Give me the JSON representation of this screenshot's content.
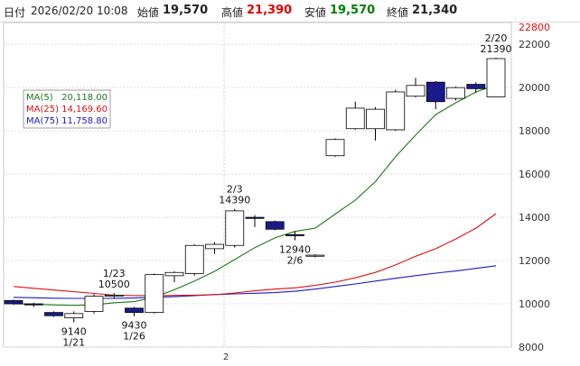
{
  "header": {
    "date_label": "日付",
    "date_value": "2026/02/20 10:08",
    "open_label": "始値",
    "open_value": "19,570",
    "high_label": "高値",
    "high_value": "21,390",
    "low_label": "安値",
    "low_value": "19,570",
    "close_label": "終値",
    "close_value": "21,340",
    "colors": {
      "high": "#e00000",
      "low": "#008000",
      "text": "#222222"
    }
  },
  "legend": {
    "ma5_label": "MA(5)",
    "ma5_value": "20,118.00",
    "ma25_label": "MA(25)",
    "ma25_value": "14,169.60",
    "ma75_label": "MA(75)",
    "ma75_value": "11,758.80"
  },
  "x_tick_label": "2",
  "chart_data": {
    "type": "candlestick",
    "ylim": [
      8000,
      22800
    ],
    "yticks": [
      8000,
      10000,
      12000,
      14000,
      16000,
      18000,
      20000,
      22000
    ],
    "top_label": "22800",
    "candles": [
      {
        "o": 10150,
        "c": 10000,
        "h": 10200,
        "l": 9950
      },
      {
        "o": 10000,
        "c": 9950,
        "h": 10050,
        "l": 9850
      },
      {
        "o": 9600,
        "c": 9450,
        "h": 9650,
        "l": 9400
      },
      {
        "o": 9350,
        "c": 9550,
        "h": 9650,
        "l": 9140
      },
      {
        "o": 9650,
        "c": 10350,
        "h": 10450,
        "l": 9550
      },
      {
        "o": 10350,
        "c": 10400,
        "h": 10500,
        "l": 10250
      },
      {
        "o": 9800,
        "c": 9600,
        "h": 9850,
        "l": 9430
      },
      {
        "o": 9600,
        "c": 11350,
        "h": 11400,
        "l": 9550
      },
      {
        "o": 11300,
        "c": 11450,
        "h": 11500,
        "l": 11000
      },
      {
        "o": 11400,
        "c": 12700,
        "h": 12750,
        "l": 11300
      },
      {
        "o": 12550,
        "c": 12750,
        "h": 12850,
        "l": 12300
      },
      {
        "o": 12700,
        "c": 14300,
        "h": 14390,
        "l": 12600
      },
      {
        "o": 14000,
        "c": 13950,
        "h": 14100,
        "l": 13550
      },
      {
        "o": 13800,
        "c": 13450,
        "h": 13850,
        "l": 13400
      },
      {
        "o": 13200,
        "c": 13150,
        "h": 13350,
        "l": 12940
      },
      {
        "o": 12200,
        "c": 12250,
        "h": 12300,
        "l": 12150
      },
      {
        "o": 16850,
        "c": 17600,
        "h": 17650,
        "l": 16800
      },
      {
        "o": 18100,
        "c": 19050,
        "h": 19350,
        "l": 18050
      },
      {
        "o": 18100,
        "c": 19000,
        "h": 19100,
        "l": 17550
      },
      {
        "o": 18050,
        "c": 19800,
        "h": 19900,
        "l": 18000
      },
      {
        "o": 19600,
        "c": 20100,
        "h": 20450,
        "l": 19550
      },
      {
        "o": 20250,
        "c": 19350,
        "h": 20300,
        "l": 19000
      },
      {
        "o": 19500,
        "c": 20000,
        "h": 20050,
        "l": 19400
      },
      {
        "o": 20150,
        "c": 19950,
        "h": 20250,
        "l": 19750
      },
      {
        "o": 19570,
        "c": 21340,
        "h": 21390,
        "l": 19570
      }
    ],
    "ma5": [
      10000,
      9980,
      9950,
      9930,
      9950,
      10050,
      10100,
      10300,
      10650,
      11050,
      11500,
      12050,
      12600,
      13050,
      13350,
      13500,
      14150,
      14800,
      15650,
      16800,
      17800,
      18750,
      19300,
      19800,
      20118
    ],
    "ma25": [
      10800,
      10720,
      10640,
      10560,
      10480,
      10400,
      10380,
      10380,
      10390,
      10400,
      10420,
      10500,
      10600,
      10680,
      10740,
      10850,
      11000,
      11200,
      11450,
      11800,
      12200,
      12550,
      13000,
      13500,
      14169.6
    ],
    "ma75": [
      10300,
      10280,
      10260,
      10250,
      10250,
      10250,
      10270,
      10300,
      10330,
      10380,
      10430,
      10460,
      10490,
      10520,
      10580,
      10680,
      10800,
      10920,
      11050,
      11180,
      11300,
      11420,
      11520,
      11640,
      11758.8
    ],
    "annotations": [
      {
        "index": 3,
        "pos": "below",
        "lines": [
          "9140",
          "1/21"
        ]
      },
      {
        "index": 5,
        "pos": "above",
        "lines": [
          "1/23",
          "10500"
        ]
      },
      {
        "index": 6,
        "pos": "below",
        "lines": [
          "9430",
          "1/26"
        ]
      },
      {
        "index": 11,
        "pos": "above",
        "lines": [
          "2/3",
          "14390"
        ]
      },
      {
        "index": 14,
        "pos": "below",
        "lines": [
          "12940",
          "2/6"
        ]
      },
      {
        "index": 24,
        "pos": "above",
        "lines": [
          "2/20",
          "21390"
        ]
      }
    ],
    "colors": {
      "up_body": "#ffffff",
      "down_body": "#1a1a8c",
      "ma5": "#1a7a1a",
      "ma25": "#e01010",
      "ma75": "#1a1acc"
    }
  }
}
